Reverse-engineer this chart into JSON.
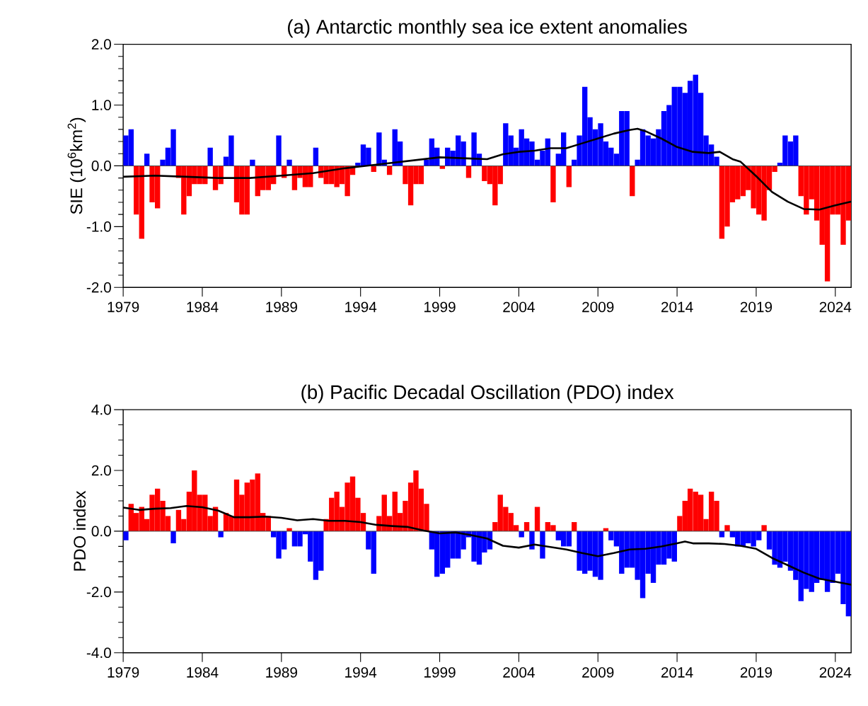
{
  "chart_data": [
    {
      "type": "bar",
      "title": "(a) Antarctic monthly sea ice extent anomalies",
      "ylabel": "SIE (10$^{6}$km$^{2}$)",
      "xlim": [
        1979,
        2025
      ],
      "ylim": [
        -2,
        2
      ],
      "xticks": [
        1979,
        1984,
        1989,
        1994,
        1999,
        2004,
        2009,
        2014,
        2019,
        2024
      ],
      "yticks": [
        {
          "value": -2,
          "label": "-2.0"
        },
        {
          "value": -1,
          "label": "-1.0"
        },
        {
          "value": 0,
          "label": "0.0"
        },
        {
          "value": 1,
          "label": "1.0"
        },
        {
          "value": 2,
          "label": "2.0"
        }
      ],
      "series": [
        {
          "x": [
            1979.17,
            1979.5,
            1979.83,
            1980.17,
            1980.5,
            1980.83,
            1981.17,
            1981.5,
            1981.83,
            1982.17,
            1982.5,
            1982.83,
            1983.17,
            1983.5,
            1983.83,
            1984.17,
            1984.5,
            1984.83,
            1985.17,
            1985.5,
            1985.83,
            1986.17,
            1986.5,
            1986.83,
            1987.17,
            1987.5,
            1987.83,
            1988.17,
            1988.5,
            1988.83,
            1989.17,
            1989.5,
            1989.83,
            1990.17,
            1990.5,
            1990.83,
            1991.17,
            1991.5,
            1991.83,
            1992.17,
            1992.5,
            1992.83,
            1993.17,
            1993.5,
            1993.83,
            1994.17,
            1994.5,
            1994.83,
            1995.17,
            1995.5,
            1995.83,
            1996.17,
            1996.5,
            1996.83,
            1997.17,
            1997.5,
            1997.83,
            1998.17,
            1998.5,
            1998.83,
            1999.17,
            1999.5,
            1999.83,
            2000.17,
            2000.5,
            2000.83,
            2001.17,
            2001.5,
            2001.83,
            2002.17,
            2002.5,
            2002.83,
            2003.17,
            2003.5,
            2003.83,
            2004.17,
            2004.5,
            2004.83,
            2005.17,
            2005.5,
            2005.83,
            2006.17,
            2006.5,
            2006.83,
            2007.17,
            2007.5,
            2007.83,
            2008.17,
            2008.5,
            2008.83,
            2009.17,
            2009.5,
            2009.83,
            2010.17,
            2010.5,
            2010.83,
            2011.17,
            2011.5,
            2011.83,
            2012.17,
            2012.5,
            2012.83,
            2013.17,
            2013.5,
            2013.83,
            2014.17,
            2014.5,
            2014.83,
            2015.17,
            2015.5,
            2015.83,
            2016.17,
            2016.5,
            2016.83,
            2017.17,
            2017.5,
            2017.83,
            2018.17,
            2018.5,
            2018.83,
            2019.17,
            2019.5,
            2019.83,
            2020.17,
            2020.5,
            2020.83,
            2021.17,
            2021.5,
            2021.83,
            2022.17,
            2022.5,
            2022.83,
            2023.17,
            2023.5,
            2023.83,
            2024.17,
            2024.5,
            2024.83
          ],
          "values": [
            0.5,
            0.6,
            -0.8,
            -1.2,
            0.2,
            -0.6,
            -0.7,
            0.1,
            0.3,
            0.6,
            -0.2,
            -0.8,
            -0.5,
            -0.3,
            -0.3,
            -0.3,
            0.3,
            -0.4,
            -0.3,
            0.15,
            0.5,
            -0.6,
            -0.8,
            -0.8,
            0.1,
            -0.5,
            -0.4,
            -0.4,
            -0.3,
            0.5,
            -0.2,
            0.1,
            -0.4,
            -0.2,
            -0.35,
            -0.35,
            0.3,
            -0.2,
            -0.3,
            -0.3,
            -0.35,
            -0.3,
            -0.5,
            -0.15,
            0.05,
            0.35,
            0.3,
            -0.1,
            0.55,
            0.1,
            -0.15,
            0.6,
            0.4,
            -0.3,
            -0.65,
            -0.3,
            -0.3,
            0.1,
            0.45,
            0.3,
            -0.05,
            0.3,
            0.25,
            0.5,
            0.4,
            -0.2,
            0.55,
            0.2,
            -0.25,
            -0.3,
            -0.65,
            -0.3,
            0.7,
            0.5,
            0.3,
            0.6,
            0.45,
            0.4,
            0.1,
            0.25,
            0.45,
            -0.6,
            0.2,
            0.55,
            -0.35,
            0.1,
            0.5,
            1.3,
            0.8,
            0.6,
            0.7,
            0.4,
            0.3,
            0.2,
            0.9,
            0.9,
            -0.5,
            0.1,
            0.6,
            0.5,
            0.45,
            0.6,
            0.9,
            1.0,
            1.3,
            1.3,
            1.2,
            1.4,
            1.5,
            1.2,
            0.5,
            0.35,
            0.15,
            -1.2,
            -1.0,
            -0.6,
            -0.55,
            -0.5,
            -0.4,
            -0.7,
            -0.8,
            -0.9,
            -0.4,
            -0.1,
            0.05,
            0.5,
            0.4,
            0.5,
            -0.5,
            -0.8,
            -0.55,
            -0.9,
            -1.3,
            -1.9,
            -0.8,
            -0.8,
            -1.3,
            -0.9
          ],
          "colors": [
            "#0000ff",
            "#0000ff",
            "#ff0000",
            "#ff0000",
            "#0000ff",
            "#ff0000",
            "#ff0000",
            "#0000ff",
            "#0000ff",
            "#0000ff",
            "#ff0000",
            "#ff0000",
            "#ff0000",
            "#ff0000",
            "#ff0000",
            "#ff0000",
            "#0000ff",
            "#ff0000",
            "#ff0000",
            "#0000ff",
            "#0000ff",
            "#ff0000",
            "#ff0000",
            "#ff0000",
            "#0000ff",
            "#ff0000",
            "#ff0000",
            "#ff0000",
            "#ff0000",
            "#0000ff",
            "#ff0000",
            "#0000ff",
            "#ff0000",
            "#ff0000",
            "#ff0000",
            "#ff0000",
            "#0000ff",
            "#ff0000",
            "#ff0000",
            "#ff0000",
            "#ff0000",
            "#ff0000",
            "#ff0000",
            "#ff0000",
            "#0000ff",
            "#0000ff",
            "#0000ff",
            "#ff0000",
            "#0000ff",
            "#0000ff",
            "#ff0000",
            "#0000ff",
            "#0000ff",
            "#ff0000",
            "#ff0000",
            "#ff0000",
            "#ff0000",
            "#0000ff",
            "#0000ff",
            "#0000ff",
            "#ff0000",
            "#0000ff",
            "#0000ff",
            "#0000ff",
            "#0000ff",
            "#ff0000",
            "#0000ff",
            "#0000ff",
            "#ff0000",
            "#ff0000",
            "#ff0000",
            "#ff0000",
            "#0000ff",
            "#0000ff",
            "#0000ff",
            "#0000ff",
            "#0000ff",
            "#0000ff",
            "#0000ff",
            "#0000ff",
            "#0000ff",
            "#ff0000",
            "#0000ff",
            "#0000ff",
            "#ff0000",
            "#0000ff",
            "#0000ff",
            "#0000ff",
            "#0000ff",
            "#0000ff",
            "#0000ff",
            "#0000ff",
            "#0000ff",
            "#0000ff",
            "#0000ff",
            "#0000ff",
            "#ff0000",
            "#0000ff",
            "#0000ff",
            "#0000ff",
            "#0000ff",
            "#0000ff",
            "#0000ff",
            "#0000ff",
            "#0000ff",
            "#0000ff",
            "#0000ff",
            "#0000ff",
            "#0000ff",
            "#0000ff",
            "#0000ff",
            "#0000ff",
            "#0000ff",
            "#ff0000",
            "#ff0000",
            "#ff0000",
            "#ff0000",
            "#ff0000",
            "#ff0000",
            "#ff0000",
            "#ff0000",
            "#ff0000",
            "#ff0000",
            "#ff0000",
            "#0000ff",
            "#0000ff",
            "#0000ff",
            "#0000ff",
            "#ff0000",
            "#ff0000",
            "#ff0000",
            "#ff0000",
            "#ff0000",
            "#ff0000",
            "#ff0000",
            "#ff0000",
            "#ff0000",
            "#ff0000"
          ]
        },
        {
          "type": "line",
          "color": "#000000",
          "x": [
            1979,
            1981,
            1983,
            1985,
            1987,
            1989,
            1991,
            1993,
            1995,
            1997,
            1999,
            2001,
            2002,
            2003,
            2004,
            2005,
            2006,
            2007,
            2008,
            2009,
            2010,
            2011,
            2011.5,
            2012,
            2013,
            2014,
            2015,
            2016,
            2016.7,
            2017.5,
            2018,
            2019,
            2020,
            2021,
            2022,
            2023,
            2024,
            2025
          ],
          "values": [
            -0.18,
            -0.16,
            -0.18,
            -0.2,
            -0.2,
            -0.16,
            -0.12,
            -0.04,
            0.02,
            0.08,
            0.14,
            0.12,
            0.11,
            0.19,
            0.23,
            0.25,
            0.29,
            0.29,
            0.37,
            0.45,
            0.53,
            0.59,
            0.61,
            0.57,
            0.45,
            0.31,
            0.23,
            0.21,
            0.23,
            0.11,
            0.07,
            -0.17,
            -0.43,
            -0.59,
            -0.71,
            -0.72,
            -0.65,
            -0.59
          ]
        }
      ]
    },
    {
      "type": "bar",
      "title": "(b) Pacific Decadal Oscillation (PDO) index",
      "ylabel": "PDO index",
      "xlim": [
        1979,
        2025
      ],
      "ylim": [
        -4,
        4
      ],
      "xticks": [
        1979,
        1984,
        1989,
        1994,
        1999,
        2004,
        2009,
        2014,
        2019,
        2024
      ],
      "yticks": [
        {
          "value": -4,
          "label": "-4.0"
        },
        {
          "value": -2,
          "label": "-2.0"
        },
        {
          "value": 0,
          "label": "0.0"
        },
        {
          "value": 2,
          "label": "2.0"
        },
        {
          "value": 4,
          "label": "4.0"
        }
      ],
      "series": [
        {
          "x": [
            1979.17,
            1979.5,
            1979.83,
            1980.17,
            1980.5,
            1980.83,
            1981.17,
            1981.5,
            1981.83,
            1982.17,
            1982.5,
            1982.83,
            1983.17,
            1983.5,
            1983.83,
            1984.17,
            1984.5,
            1984.83,
            1985.17,
            1985.5,
            1985.83,
            1986.17,
            1986.5,
            1986.83,
            1987.17,
            1987.5,
            1987.83,
            1988.17,
            1988.5,
            1988.83,
            1989.17,
            1989.5,
            1989.83,
            1990.17,
            1990.5,
            1990.83,
            1991.17,
            1991.5,
            1991.83,
            1992.17,
            1992.5,
            1992.83,
            1993.17,
            1993.5,
            1993.83,
            1994.17,
            1994.5,
            1994.83,
            1995.17,
            1995.5,
            1995.83,
            1996.17,
            1996.5,
            1996.83,
            1997.17,
            1997.5,
            1997.83,
            1998.17,
            1998.5,
            1998.83,
            1999.17,
            1999.5,
            1999.83,
            2000.17,
            2000.5,
            2000.83,
            2001.17,
            2001.5,
            2001.83,
            2002.17,
            2002.5,
            2002.83,
            2003.17,
            2003.5,
            2003.83,
            2004.17,
            2004.5,
            2004.83,
            2005.17,
            2005.5,
            2005.83,
            2006.17,
            2006.5,
            2006.83,
            2007.17,
            2007.5,
            2007.83,
            2008.17,
            2008.5,
            2008.83,
            2009.17,
            2009.5,
            2009.83,
            2010.17,
            2010.5,
            2010.83,
            2011.17,
            2011.5,
            2011.83,
            2012.17,
            2012.5,
            2012.83,
            2013.17,
            2013.5,
            2013.83,
            2014.17,
            2014.5,
            2014.83,
            2015.17,
            2015.5,
            2015.83,
            2016.17,
            2016.5,
            2016.83,
            2017.17,
            2017.5,
            2017.83,
            2018.17,
            2018.5,
            2018.83,
            2019.17,
            2019.5,
            2019.83,
            2020.17,
            2020.5,
            2020.83,
            2021.17,
            2021.5,
            2021.83,
            2022.17,
            2022.5,
            2022.83,
            2023.17,
            2023.5,
            2023.83,
            2024.17,
            2024.5,
            2024.83
          ],
          "values": [
            -0.3,
            0.9,
            0.6,
            0.8,
            0.4,
            1.2,
            1.4,
            1.0,
            0.5,
            -0.4,
            0.7,
            0.4,
            1.3,
            2.0,
            1.2,
            1.2,
            0.5,
            0.8,
            -0.2,
            0.6,
            0.5,
            1.7,
            1.2,
            1.6,
            1.7,
            1.9,
            0.6,
            0.5,
            -0.2,
            -0.9,
            -0.6,
            0.1,
            -0.5,
            -0.5,
            -0.1,
            -1.0,
            -1.6,
            -1.3,
            0.4,
            1.1,
            1.3,
            0.8,
            1.6,
            1.8,
            1.1,
            0.6,
            -0.6,
            -1.4,
            0.5,
            1.2,
            0.5,
            1.3,
            0.6,
            1.0,
            1.6,
            2.0,
            1.4,
            0.9,
            -0.6,
            -1.5,
            -1.4,
            -1.2,
            -0.9,
            -0.9,
            -0.6,
            -0.2,
            -1.0,
            -1.1,
            -0.7,
            -0.6,
            0.3,
            1.2,
            0.8,
            0.6,
            0.2,
            -0.2,
            0.3,
            -0.6,
            0.8,
            -0.9,
            0.3,
            0.2,
            -0.3,
            -0.5,
            -0.5,
            0.3,
            -1.3,
            -1.4,
            -1.3,
            -1.5,
            -1.6,
            0.1,
            -0.3,
            -0.5,
            -1.4,
            -1.2,
            -1.2,
            -1.6,
            -2.2,
            -1.4,
            -1.7,
            -1.1,
            -1.1,
            -0.9,
            -1.0,
            0.5,
            1.0,
            1.4,
            1.3,
            1.2,
            0.4,
            1.3,
            1.0,
            -0.2,
            0.2,
            -0.2,
            -0.5,
            -0.5,
            -0.4,
            -0.5,
            -0.3,
            0.2,
            -0.6,
            -1.1,
            -1.2,
            -1.0,
            -1.3,
            -1.6,
            -2.3,
            -1.9,
            -2.0,
            -1.7,
            -1.6,
            -2.0,
            -1.7,
            -1.4,
            -2.4,
            -2.8
          ],
          "colors": [
            "#0000ff",
            "#ff0000",
            "#ff0000",
            "#ff0000",
            "#ff0000",
            "#ff0000",
            "#ff0000",
            "#ff0000",
            "#ff0000",
            "#0000ff",
            "#ff0000",
            "#ff0000",
            "#ff0000",
            "#ff0000",
            "#ff0000",
            "#ff0000",
            "#ff0000",
            "#ff0000",
            "#0000ff",
            "#ff0000",
            "#ff0000",
            "#ff0000",
            "#ff0000",
            "#ff0000",
            "#ff0000",
            "#ff0000",
            "#ff0000",
            "#ff0000",
            "#0000ff",
            "#0000ff",
            "#0000ff",
            "#ff0000",
            "#0000ff",
            "#0000ff",
            "#0000ff",
            "#0000ff",
            "#0000ff",
            "#0000ff",
            "#ff0000",
            "#ff0000",
            "#ff0000",
            "#ff0000",
            "#ff0000",
            "#ff0000",
            "#ff0000",
            "#ff0000",
            "#0000ff",
            "#0000ff",
            "#ff0000",
            "#ff0000",
            "#ff0000",
            "#ff0000",
            "#ff0000",
            "#ff0000",
            "#ff0000",
            "#ff0000",
            "#ff0000",
            "#ff0000",
            "#0000ff",
            "#0000ff",
            "#0000ff",
            "#0000ff",
            "#0000ff",
            "#0000ff",
            "#0000ff",
            "#0000ff",
            "#0000ff",
            "#0000ff",
            "#0000ff",
            "#0000ff",
            "#ff0000",
            "#ff0000",
            "#ff0000",
            "#ff0000",
            "#ff0000",
            "#0000ff",
            "#ff0000",
            "#0000ff",
            "#ff0000",
            "#0000ff",
            "#ff0000",
            "#ff0000",
            "#0000ff",
            "#0000ff",
            "#0000ff",
            "#ff0000",
            "#0000ff",
            "#0000ff",
            "#0000ff",
            "#0000ff",
            "#0000ff",
            "#ff0000",
            "#0000ff",
            "#0000ff",
            "#0000ff",
            "#0000ff",
            "#0000ff",
            "#0000ff",
            "#0000ff",
            "#0000ff",
            "#0000ff",
            "#0000ff",
            "#0000ff",
            "#0000ff",
            "#0000ff",
            "#ff0000",
            "#ff0000",
            "#ff0000",
            "#ff0000",
            "#ff0000",
            "#ff0000",
            "#ff0000",
            "#ff0000",
            "#0000ff",
            "#ff0000",
            "#0000ff",
            "#0000ff",
            "#0000ff",
            "#0000ff",
            "#0000ff",
            "#0000ff",
            "#ff0000",
            "#0000ff",
            "#0000ff",
            "#0000ff",
            "#0000ff",
            "#0000ff",
            "#0000ff",
            "#0000ff",
            "#0000ff",
            "#0000ff",
            "#0000ff",
            "#0000ff",
            "#0000ff",
            "#0000ff",
            "#0000ff",
            "#0000ff",
            "#0000ff"
          ]
        },
        {
          "type": "line",
          "color": "#000000",
          "x": [
            1979,
            1980,
            1981,
            1982,
            1983,
            1984,
            1985,
            1986,
            1987,
            1988,
            1989,
            1990,
            1991,
            1992,
            1993,
            1994,
            1995,
            1996,
            1997,
            1998,
            1999,
            2000,
            2001,
            2002,
            2003,
            2004,
            2005,
            2006,
            2007,
            2008,
            2009,
            2010,
            2011,
            2012,
            2013,
            2014,
            2014.5,
            2015,
            2016,
            2017,
            2018,
            2019,
            2020,
            2021,
            2022,
            2023,
            2024,
            2025
          ],
          "values": [
            0.78,
            0.7,
            0.74,
            0.76,
            0.83,
            0.79,
            0.68,
            0.46,
            0.46,
            0.48,
            0.44,
            0.36,
            0.4,
            0.34,
            0.34,
            0.3,
            0.21,
            0.17,
            0.14,
            0.02,
            -0.07,
            -0.04,
            -0.13,
            -0.24,
            -0.48,
            -0.54,
            -0.44,
            -0.52,
            -0.6,
            -0.72,
            -0.82,
            -0.72,
            -0.6,
            -0.58,
            -0.5,
            -0.4,
            -0.34,
            -0.4,
            -0.4,
            -0.42,
            -0.48,
            -0.58,
            -0.88,
            -1.12,
            -1.36,
            -1.56,
            -1.66,
            -1.76
          ]
        }
      ]
    }
  ]
}
